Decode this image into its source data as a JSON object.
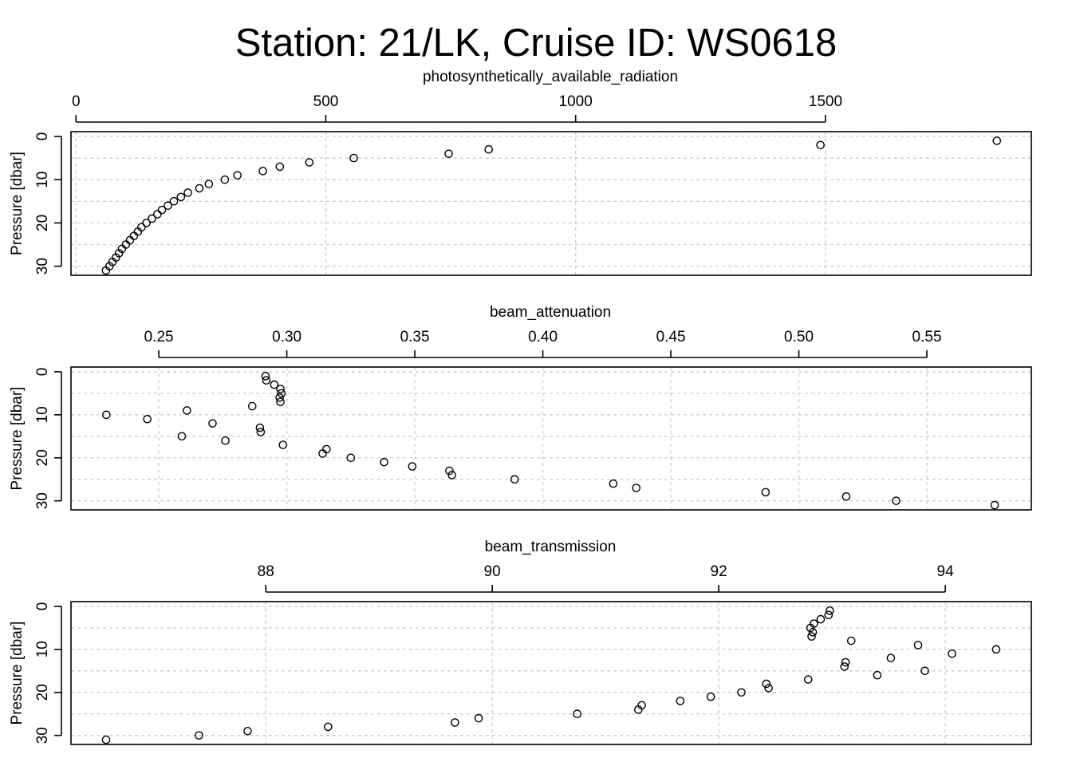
{
  "chart_data": {
    "title": "Station: 21/LK, Cruise ID: WS0618",
    "type": "scatter",
    "ylabel": "Pressure [dbar]",
    "y_ticks": [
      0,
      10,
      20,
      30
    ],
    "y_range_inverted": [
      32.1,
      -1.1
    ],
    "grid": true,
    "panels": [
      {
        "xlabel": "photosynthetically_available_radiation",
        "x_ticks": [
          0,
          500,
          1000,
          1500
        ],
        "x_range": [
          -10,
          1912
        ],
        "points": [
          {
            "x": 1843,
            "y": 1
          },
          {
            "x": 1490,
            "y": 2
          },
          {
            "x": 826,
            "y": 3
          },
          {
            "x": 746,
            "y": 4
          },
          {
            "x": 556,
            "y": 5
          },
          {
            "x": 467,
            "y": 6
          },
          {
            "x": 408,
            "y": 7
          },
          {
            "x": 374,
            "y": 8
          },
          {
            "x": 323,
            "y": 9
          },
          {
            "x": 298,
            "y": 10
          },
          {
            "x": 266,
            "y": 11
          },
          {
            "x": 247,
            "y": 12
          },
          {
            "x": 224,
            "y": 13
          },
          {
            "x": 210,
            "y": 14
          },
          {
            "x": 196,
            "y": 15
          },
          {
            "x": 184,
            "y": 16
          },
          {
            "x": 172,
            "y": 17
          },
          {
            "x": 163,
            "y": 18
          },
          {
            "x": 152,
            "y": 19
          },
          {
            "x": 141,
            "y": 20
          },
          {
            "x": 131,
            "y": 21
          },
          {
            "x": 124,
            "y": 22
          },
          {
            "x": 116,
            "y": 23
          },
          {
            "x": 108,
            "y": 24
          },
          {
            "x": 100,
            "y": 25
          },
          {
            "x": 92,
            "y": 26
          },
          {
            "x": 86,
            "y": 27
          },
          {
            "x": 80,
            "y": 28
          },
          {
            "x": 73,
            "y": 29
          },
          {
            "x": 67,
            "y": 30
          },
          {
            "x": 60,
            "y": 31
          }
        ]
      },
      {
        "xlabel": "beam_attenuation",
        "x_ticks": [
          0.25,
          0.3,
          0.35,
          0.4,
          0.45,
          0.5,
          0.55
        ],
        "x_tick_labels": [
          "0.25",
          "0.30",
          "0.35",
          "0.40",
          "0.45",
          "0.50",
          "0.55"
        ],
        "x_range": [
          0.2157,
          0.5908
        ],
        "points": [
          {
            "x": 0.2917,
            "y": 1
          },
          {
            "x": 0.292,
            "y": 2
          },
          {
            "x": 0.2951,
            "y": 3
          },
          {
            "x": 0.2975,
            "y": 4
          },
          {
            "x": 0.2979,
            "y": 5
          },
          {
            "x": 0.2972,
            "y": 6
          },
          {
            "x": 0.2975,
            "y": 7
          },
          {
            "x": 0.2865,
            "y": 8
          },
          {
            "x": 0.261,
            "y": 9
          },
          {
            "x": 0.2295,
            "y": 10
          },
          {
            "x": 0.2455,
            "y": 11
          },
          {
            "x": 0.271,
            "y": 12
          },
          {
            "x": 0.2895,
            "y": 13
          },
          {
            "x": 0.2898,
            "y": 14
          },
          {
            "x": 0.259,
            "y": 15
          },
          {
            "x": 0.276,
            "y": 16
          },
          {
            "x": 0.2985,
            "y": 17
          },
          {
            "x": 0.3155,
            "y": 18
          },
          {
            "x": 0.314,
            "y": 19
          },
          {
            "x": 0.325,
            "y": 20
          },
          {
            "x": 0.338,
            "y": 21
          },
          {
            "x": 0.349,
            "y": 22
          },
          {
            "x": 0.3635,
            "y": 23
          },
          {
            "x": 0.3645,
            "y": 24
          },
          {
            "x": 0.389,
            "y": 25
          },
          {
            "x": 0.4275,
            "y": 26
          },
          {
            "x": 0.4365,
            "y": 27
          },
          {
            "x": 0.487,
            "y": 28
          },
          {
            "x": 0.5185,
            "y": 29
          },
          {
            "x": 0.538,
            "y": 30
          },
          {
            "x": 0.5765,
            "y": 31
          }
        ]
      },
      {
        "xlabel": "beam_transmission",
        "x_ticks": [
          88,
          90,
          92,
          94
        ],
        "x_range": [
          86.28,
          94.76
        ],
        "points": [
          {
            "x": 92.98,
            "y": 1
          },
          {
            "x": 92.97,
            "y": 2
          },
          {
            "x": 92.9,
            "y": 3
          },
          {
            "x": 92.84,
            "y": 4
          },
          {
            "x": 92.81,
            "y": 5
          },
          {
            "x": 92.83,
            "y": 6
          },
          {
            "x": 92.82,
            "y": 7
          },
          {
            "x": 93.17,
            "y": 8
          },
          {
            "x": 93.76,
            "y": 9
          },
          {
            "x": 94.45,
            "y": 10
          },
          {
            "x": 94.06,
            "y": 11
          },
          {
            "x": 93.52,
            "y": 12
          },
          {
            "x": 93.12,
            "y": 13
          },
          {
            "x": 93.11,
            "y": 14
          },
          {
            "x": 93.82,
            "y": 15
          },
          {
            "x": 93.4,
            "y": 16
          },
          {
            "x": 92.79,
            "y": 17
          },
          {
            "x": 92.42,
            "y": 18
          },
          {
            "x": 92.44,
            "y": 19
          },
          {
            "x": 92.2,
            "y": 20
          },
          {
            "x": 91.93,
            "y": 21
          },
          {
            "x": 91.66,
            "y": 22
          },
          {
            "x": 91.32,
            "y": 23
          },
          {
            "x": 91.29,
            "y": 24
          },
          {
            "x": 90.75,
            "y": 25
          },
          {
            "x": 89.88,
            "y": 26
          },
          {
            "x": 89.67,
            "y": 27
          },
          {
            "x": 88.55,
            "y": 28
          },
          {
            "x": 87.84,
            "y": 29
          },
          {
            "x": 87.41,
            "y": 30
          },
          {
            "x": 86.59,
            "y": 31
          }
        ]
      }
    ]
  }
}
